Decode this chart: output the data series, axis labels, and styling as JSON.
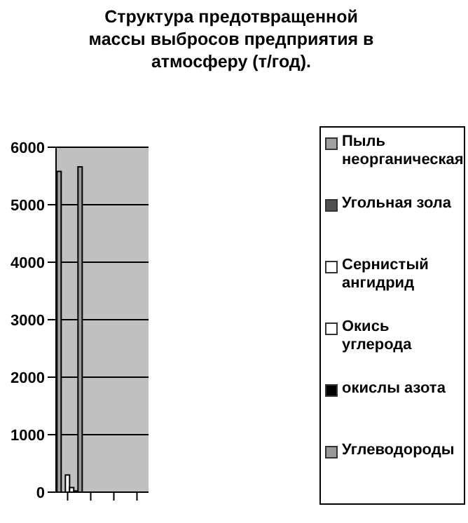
{
  "chart_data": {
    "type": "bar",
    "title": "Структура предотвращенной массы выбросов предприятия в атмосферу (т/год).",
    "categories": [
      null,
      null,
      null,
      null
    ],
    "series": [
      {
        "name": "Пыль неорганическая",
        "color": "#a0a0a0",
        "values": [
          5580,
          null,
          null,
          null
        ]
      },
      {
        "name": "Угольная зола",
        "color": "#505050",
        "values": [
          null,
          null,
          null,
          null
        ]
      },
      {
        "name": "Сернистый ангидрид",
        "color": "#ffffff",
        "values": [
          300,
          null,
          null,
          null
        ]
      },
      {
        "name": "Окись углерода",
        "color": "#ffffff",
        "values": [
          80,
          null,
          null,
          null
        ]
      },
      {
        "name": "окислы азота",
        "color": "#000000",
        "values": [
          20,
          null,
          null,
          null
        ]
      },
      {
        "name": "Углеводороды",
        "color": "#999999",
        "values": [
          5660,
          null,
          null,
          null
        ]
      }
    ],
    "ylim": [
      0,
      6000
    ],
    "yticks": [
      0,
      1000,
      2000,
      3000,
      4000,
      5000,
      6000
    ],
    "grid": "y",
    "legend": "right"
  }
}
